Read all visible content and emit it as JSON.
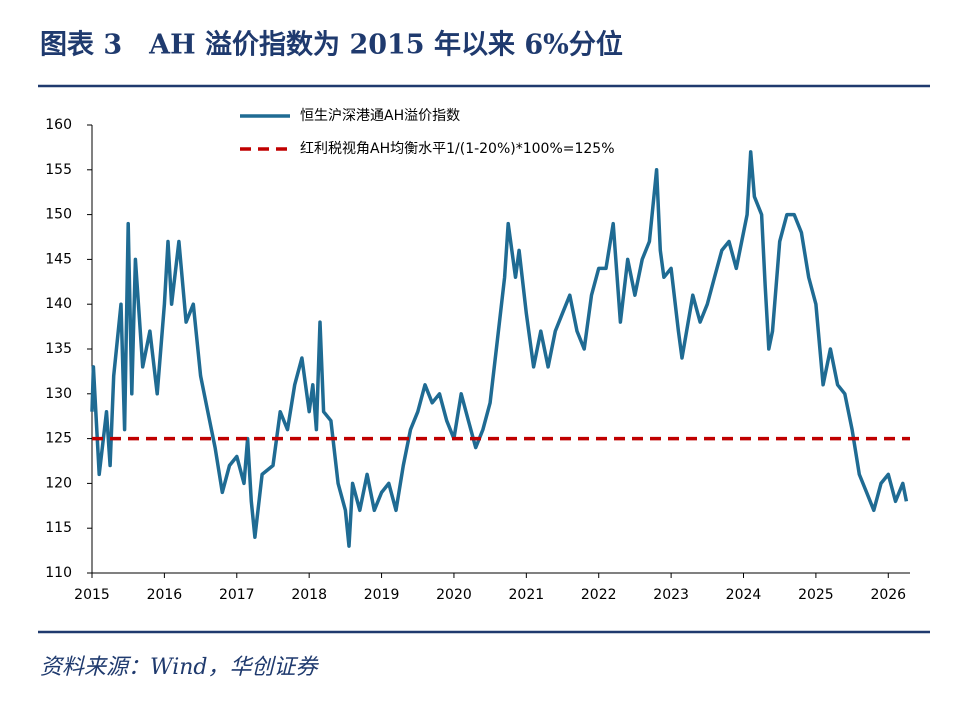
{
  "chart_data": {
    "type": "line",
    "title": "图表 3　AH 溢价指数为 2015 年以来 6%分位",
    "source": "资料来源：Wind，华创证券",
    "xlim": [
      2015,
      2026.3
    ],
    "xticks": [
      2015,
      2016,
      2017,
      2018,
      2019,
      2020,
      2021,
      2022,
      2023,
      2024,
      2025,
      2026
    ],
    "ylim": [
      110,
      160
    ],
    "yticks": [
      110,
      115,
      120,
      125,
      130,
      135,
      140,
      145,
      150,
      155,
      160
    ],
    "grid": false,
    "legend": "top",
    "series": [
      {
        "name": "恒生沪深港通AH溢价指数",
        "color": "#1f6b93",
        "style": "solid",
        "x": [
          2015.0,
          2015.02,
          2015.1,
          2015.2,
          2015.25,
          2015.3,
          2015.4,
          2015.45,
          2015.5,
          2015.55,
          2015.6,
          2015.7,
          2015.8,
          2015.9,
          2016.0,
          2016.05,
          2016.1,
          2016.2,
          2016.3,
          2016.4,
          2016.5,
          2016.6,
          2016.7,
          2016.8,
          2016.9,
          2017.0,
          2017.1,
          2017.15,
          2017.2,
          2017.25,
          2017.35,
          2017.5,
          2017.6,
          2017.7,
          2017.8,
          2017.9,
          2018.0,
          2018.05,
          2018.1,
          2018.15,
          2018.2,
          2018.3,
          2018.4,
          2018.5,
          2018.55,
          2018.6,
          2018.7,
          2018.8,
          2018.9,
          2019.0,
          2019.1,
          2019.2,
          2019.3,
          2019.4,
          2019.5,
          2019.6,
          2019.7,
          2019.8,
          2019.9,
          2020.0,
          2020.1,
          2020.2,
          2020.3,
          2020.4,
          2020.5,
          2020.6,
          2020.7,
          2020.75,
          2020.85,
          2020.9,
          2021.0,
          2021.1,
          2021.2,
          2021.3,
          2021.4,
          2021.5,
          2021.6,
          2021.7,
          2021.8,
          2021.9,
          2022.0,
          2022.1,
          2022.2,
          2022.3,
          2022.4,
          2022.5,
          2022.6,
          2022.7,
          2022.8,
          2022.85,
          2022.9,
          2023.0,
          2023.1,
          2023.15,
          2023.3,
          2023.4,
          2023.5,
          2023.6,
          2023.7,
          2023.8,
          2023.9,
          2024.0,
          2024.05,
          2024.1,
          2024.15,
          2024.25,
          2024.3,
          2024.35,
          2024.4,
          2024.5,
          2024.6,
          2024.7,
          2024.8,
          2024.9,
          2025.0,
          2025.1,
          2025.2,
          2025.3,
          2025.4,
          2025.5,
          2025.6,
          2025.7,
          2025.8,
          2025.9,
          2026.0,
          2026.1,
          2026.2,
          2026.25
        ],
        "values": [
          128,
          133,
          121,
          128,
          122,
          132,
          140,
          126,
          149,
          130,
          145,
          133,
          137,
          130,
          140,
          147,
          140,
          147,
          138,
          140,
          132,
          128,
          124,
          119,
          122,
          123,
          120,
          125,
          118,
          114,
          121,
          122,
          128,
          126,
          131,
          134,
          128,
          131,
          126,
          138,
          128,
          127,
          120,
          117,
          113,
          120,
          117,
          121,
          117,
          119,
          120,
          117,
          122,
          126,
          128,
          131,
          129,
          130,
          127,
          125,
          130,
          127,
          124,
          126,
          129,
          136,
          143,
          149,
          143,
          146,
          139,
          133,
          137,
          133,
          137,
          139,
          141,
          137,
          135,
          141,
          144,
          144,
          149,
          138,
          145,
          141,
          145,
          147,
          155,
          146,
          143,
          144,
          137,
          134,
          141,
          138,
          140,
          143,
          146,
          147,
          144,
          148,
          150,
          157,
          152,
          150,
          142,
          135,
          137,
          147,
          150,
          150,
          148,
          143,
          140,
          131,
          135,
          131,
          130,
          126,
          121,
          119,
          117,
          120,
          121,
          118,
          120,
          118
        ]
      },
      {
        "name": "红利税视角AH均衡水平1/(1-20%)*100%=125%",
        "color": "#c00000",
        "style": "dashed",
        "x": [
          2015,
          2026.3
        ],
        "values": [
          125,
          125
        ]
      }
    ]
  }
}
